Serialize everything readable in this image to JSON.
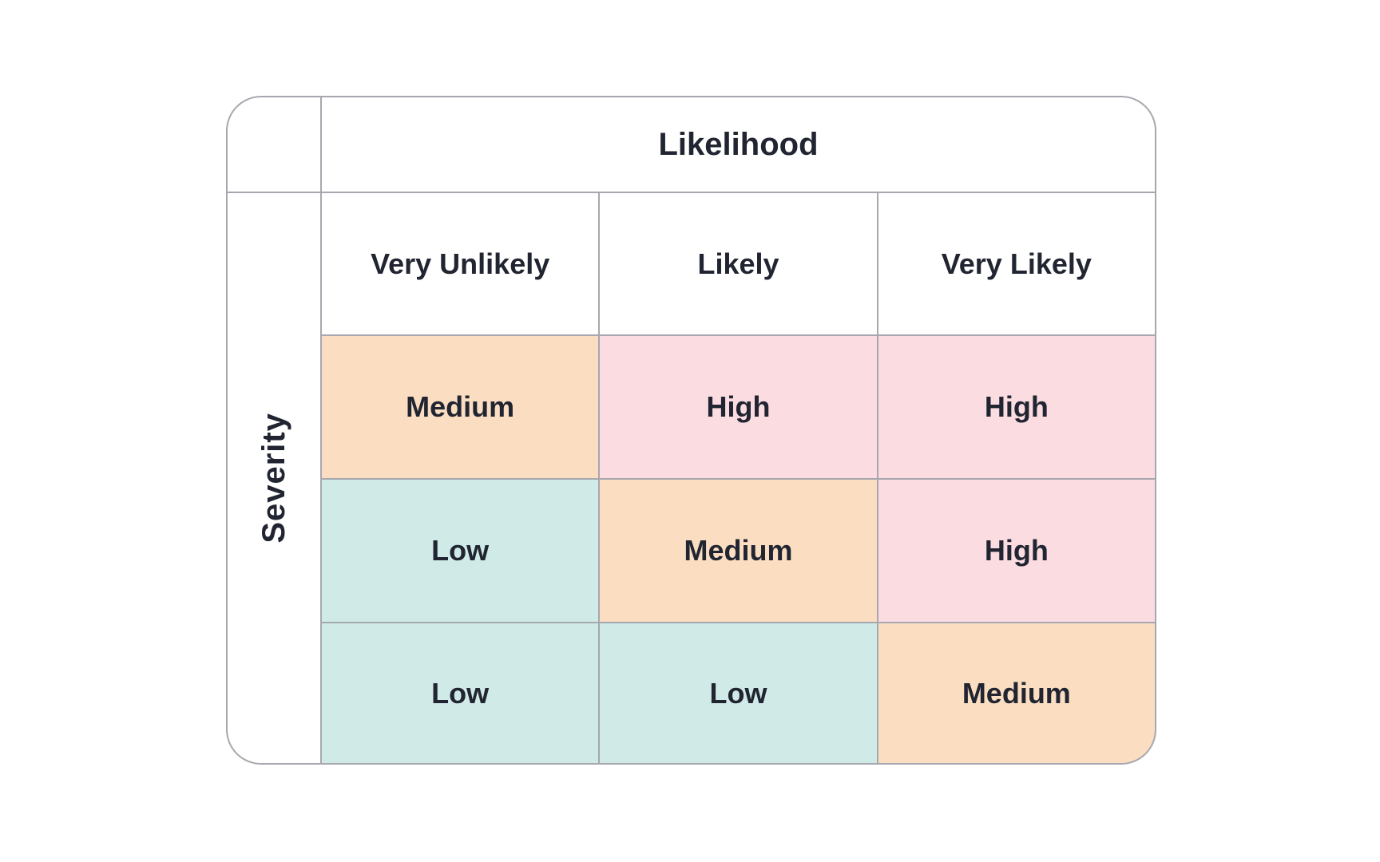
{
  "matrix": {
    "col_axis_label": "Likelihood",
    "row_axis_label": "Severity",
    "columns": [
      "Very Unlikely",
      "Likely",
      "Very Likely"
    ],
    "cells": [
      [
        "Medium",
        "High",
        "High"
      ],
      [
        "Low",
        "Medium",
        "High"
      ],
      [
        "Low",
        "Low",
        "Medium"
      ]
    ],
    "cell_colors": [
      [
        "#FBDEC2",
        "#FBDCE1",
        "#FBDCE1"
      ],
      [
        "#CFEAE7",
        "#FBDEC2",
        "#FBDCE1"
      ],
      [
        "#CFEAE7",
        "#CFEAE7",
        "#FBDEC2"
      ]
    ],
    "palette": {
      "low": "#CFEAE7",
      "medium": "#FBDEC2",
      "high": "#FBDCE1",
      "grid_border": "#A7A7AF",
      "text": "#212531",
      "header_background": "#FFFFFF",
      "page_background": "#FFFFFF"
    }
  }
}
